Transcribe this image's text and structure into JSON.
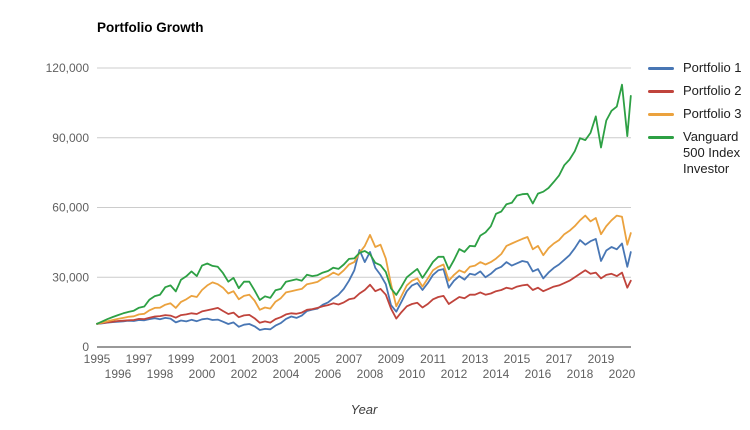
{
  "chart_data": {
    "type": "line",
    "title": "Portfolio Growth",
    "xlabel": "Year",
    "ylabel": "",
    "xlim": [
      1995,
      2020.5
    ],
    "ylim": [
      0,
      120000
    ],
    "grid": true,
    "legend_position": "right",
    "axis_text_color": "#616161",
    "grid_color": "#cccccc",
    "axis_line_color": "#333333",
    "y_ticks": [
      {
        "value": 0,
        "label": "0"
      },
      {
        "value": 30000,
        "label": "30,000"
      },
      {
        "value": 60000,
        "label": "60,000"
      },
      {
        "value": 90000,
        "label": "90,000"
      },
      {
        "value": 120000,
        "label": "120,000"
      }
    ],
    "x_ticks": [
      1995,
      1996,
      1997,
      1998,
      1999,
      2000,
      2001,
      2002,
      2003,
      2004,
      2005,
      2006,
      2007,
      2008,
      2009,
      2010,
      2011,
      2012,
      2013,
      2014,
      2015,
      2016,
      2017,
      2018,
      2019,
      2020
    ],
    "x": [
      1995,
      1995.25,
      1995.5,
      1995.75,
      1996,
      1996.25,
      1996.5,
      1996.75,
      1997,
      1997.25,
      1997.5,
      1997.75,
      1998,
      1998.25,
      1998.5,
      1998.75,
      1999,
      1999.25,
      1999.5,
      1999.75,
      2000,
      2000.25,
      2000.5,
      2000.75,
      2001,
      2001.25,
      2001.5,
      2001.75,
      2002,
      2002.25,
      2002.5,
      2002.75,
      2003,
      2003.25,
      2003.5,
      2003.75,
      2004,
      2004.25,
      2004.5,
      2004.75,
      2005,
      2005.25,
      2005.5,
      2005.75,
      2006,
      2006.25,
      2006.5,
      2006.75,
      2007,
      2007.25,
      2007.5,
      2007.75,
      2008,
      2008.25,
      2008.5,
      2008.75,
      2009,
      2009.25,
      2009.5,
      2009.75,
      2010,
      2010.25,
      2010.5,
      2010.75,
      2011,
      2011.25,
      2011.5,
      2011.75,
      2012,
      2012.25,
      2012.5,
      2012.75,
      2013,
      2013.25,
      2013.5,
      2013.75,
      2014,
      2014.25,
      2014.5,
      2014.75,
      2015,
      2015.25,
      2015.5,
      2015.75,
      2016,
      2016.25,
      2016.5,
      2016.75,
      2017,
      2017.25,
      2017.5,
      2017.75,
      2018,
      2018.25,
      2018.5,
      2018.75,
      2019,
      2019.25,
      2019.5,
      2019.75,
      2020,
      2020.25,
      2020.42
    ],
    "series": [
      {
        "name": "Portfolio 1",
        "color": "#4876b4",
        "values": [
          10000,
          10200,
          10500,
          10700,
          10900,
          11000,
          11300,
          11200,
          11600,
          11500,
          12000,
          12400,
          11900,
          12500,
          12200,
          10600,
          11400,
          11000,
          11700,
          11100,
          11900,
          12200,
          11600,
          11800,
          10900,
          9900,
          10600,
          8700,
          9600,
          9900,
          8900,
          7300,
          7800,
          7600,
          9200,
          10300,
          12100,
          13100,
          12500,
          13500,
          15500,
          16100,
          16500,
          18200,
          19200,
          21000,
          22500,
          25000,
          28500,
          33000,
          41700,
          36500,
          40900,
          34000,
          31000,
          27000,
          18000,
          15200,
          19500,
          24000,
          26500,
          27500,
          24500,
          27500,
          31000,
          33000,
          33500,
          25500,
          28500,
          30500,
          29000,
          31500,
          31000,
          32500,
          30000,
          31500,
          33500,
          34500,
          36500,
          35000,
          36000,
          37000,
          36500,
          32500,
          33500,
          29500,
          32000,
          34000,
          35500,
          37500,
          39500,
          42500,
          46000,
          44000,
          45500,
          46500,
          37000,
          41500,
          43000,
          42000,
          44500,
          34500,
          40800
        ]
      },
      {
        "name": "Portfolio 2",
        "color": "#c0443c",
        "values": [
          10000,
          10300,
          10600,
          10900,
          11200,
          11300,
          11500,
          11600,
          12100,
          12000,
          12600,
          13100,
          13300,
          13700,
          13500,
          12600,
          13700,
          14000,
          14500,
          14200,
          15300,
          15800,
          16300,
          16800,
          15500,
          14200,
          14800,
          12800,
          13600,
          13800,
          12400,
          10400,
          11000,
          10500,
          12000,
          12800,
          14000,
          14500,
          14300,
          14800,
          16000,
          16300,
          16800,
          17500,
          18000,
          18800,
          18300,
          19200,
          20500,
          21000,
          23000,
          24500,
          26800,
          24000,
          25000,
          22500,
          16500,
          12200,
          15000,
          17500,
          18500,
          19000,
          17000,
          18500,
          20500,
          21500,
          22000,
          18500,
          20000,
          21500,
          21000,
          22500,
          22500,
          23500,
          22500,
          23000,
          24000,
          24500,
          25500,
          25000,
          26000,
          26500,
          26800,
          24500,
          25500,
          24000,
          25000,
          26000,
          26500,
          27500,
          28500,
          30000,
          31500,
          33000,
          31500,
          32000,
          29500,
          31000,
          31500,
          30500,
          32000,
          25500,
          28500
        ]
      },
      {
        "name": "Portfolio 3",
        "color": "#eba23e",
        "values": [
          10000,
          10500,
          11100,
          11600,
          12100,
          12500,
          13000,
          13200,
          14000,
          14300,
          15800,
          16800,
          16900,
          18200,
          18800,
          16800,
          19400,
          20500,
          22000,
          21500,
          24500,
          26500,
          27800,
          27000,
          25500,
          23000,
          24000,
          20500,
          22000,
          22500,
          20000,
          16000,
          17000,
          16500,
          19500,
          21000,
          23500,
          24000,
          24500,
          25000,
          27000,
          27500,
          28000,
          29500,
          30500,
          32000,
          31000,
          33000,
          35500,
          36500,
          40500,
          43500,
          48200,
          43000,
          44000,
          38000,
          27000,
          17500,
          22000,
          26500,
          28500,
          29500,
          26000,
          29500,
          33000,
          34500,
          35500,
          28500,
          31000,
          33000,
          32000,
          34500,
          35000,
          36500,
          35500,
          36500,
          38000,
          40000,
          43500,
          44500,
          45500,
          46500,
          47300,
          42000,
          43500,
          39500,
          42500,
          44500,
          46000,
          48500,
          50000,
          52000,
          54500,
          56500,
          54000,
          55500,
          48500,
          52000,
          54500,
          56500,
          56000,
          44000,
          49000
        ]
      },
      {
        "name": "Vanguard 500 Index Investor",
        "color": "#2da044",
        "values": [
          10000,
          11000,
          12000,
          12900,
          13700,
          14500,
          15100,
          15600,
          16900,
          17400,
          20400,
          21900,
          22500,
          25700,
          26500,
          23900,
          28900,
          30400,
          32500,
          30500,
          35000,
          35900,
          34900,
          34500,
          31800,
          28100,
          29700,
          25300,
          28100,
          28100,
          24400,
          20200,
          21800,
          21100,
          24400,
          25000,
          28100,
          28600,
          29100,
          28500,
          31100,
          30500,
          30900,
          32000,
          32700,
          34100,
          33600,
          35500,
          37900,
          38100,
          40500,
          41300,
          39900,
          36200,
          35200,
          32300,
          25200,
          22400,
          26000,
          30000,
          31800,
          33600,
          29700,
          33100,
          36600,
          38800,
          38800,
          33400,
          37400,
          42100,
          40900,
          43500,
          43300,
          47900,
          49300,
          51900,
          57300,
          58300,
          61400,
          62000,
          65100,
          65700,
          65900,
          61700,
          66000,
          66800,
          68400,
          71000,
          73700,
          78200,
          80600,
          84200,
          89800,
          89000,
          92100,
          99200,
          85800,
          97400,
          101600,
          103400,
          112800,
          90700,
          108000
        ]
      }
    ]
  }
}
